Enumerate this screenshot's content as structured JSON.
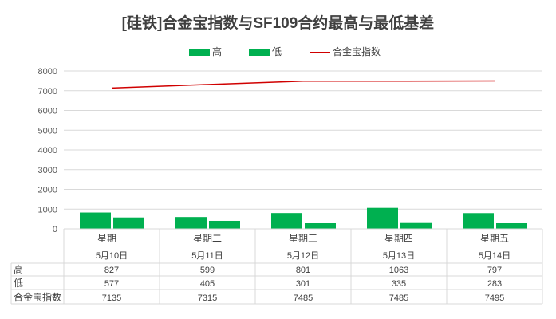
{
  "chart_data": {
    "type": "bar",
    "title": "[硅铁]合金宝指数与SF109合约最高与最低基差",
    "categories": [
      "星期一",
      "星期二",
      "星期三",
      "星期四",
      "星期五"
    ],
    "dates": [
      "5月10日",
      "5月11日",
      "5月12日",
      "5月13日",
      "5月14日"
    ],
    "series": [
      {
        "name": "高",
        "kind": "bar",
        "color": "#00b050",
        "values": [
          827,
          599,
          801,
          1063,
          797
        ]
      },
      {
        "name": "低",
        "kind": "bar",
        "color": "#00b050",
        "values": [
          577,
          405,
          301,
          335,
          283
        ]
      },
      {
        "name": "合金宝指数",
        "kind": "line",
        "color": "#d00000",
        "values": [
          7135,
          7315,
          7485,
          7485,
          7495
        ]
      }
    ],
    "ylim": [
      0,
      8000
    ],
    "yticks": [
      0,
      1000,
      2000,
      3000,
      4000,
      5000,
      6000,
      7000,
      8000
    ],
    "grid": true,
    "legend": "top-center",
    "data_table": true
  }
}
